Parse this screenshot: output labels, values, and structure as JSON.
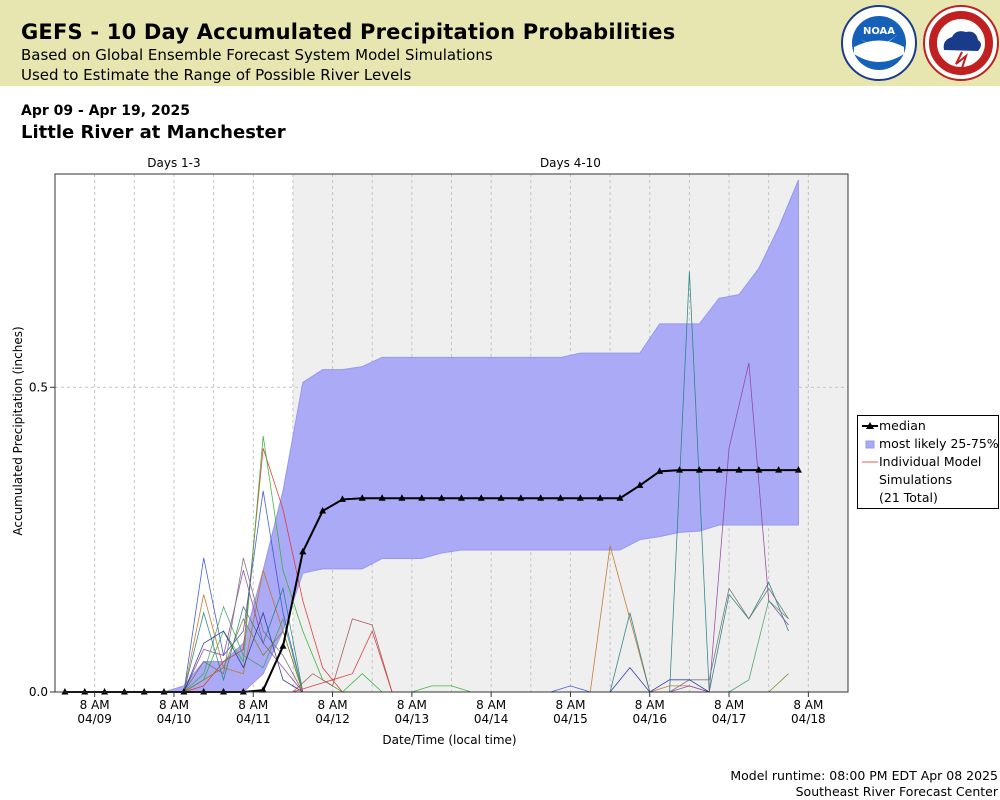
{
  "header": {
    "title": "GEFS - 10 Day Accumulated Precipitation Probabilities",
    "subtitle1": "Based on Global Ensemble Forecast System Model Simulations",
    "subtitle2": "Used to Estimate the Range of Possible River Levels",
    "logos": [
      {
        "name": "noaa-logo",
        "text": "NOAA",
        "ring_text": "NATIONAL OCEANIC AND ATMOSPHERIC ADMINISTRATION"
      },
      {
        "name": "nws-logo",
        "ring_text": "NATIONAL WEATHER SERVICE"
      }
    ]
  },
  "period": "Apr 09 - Apr 19, 2025",
  "station": "Little River at Manchester",
  "footer": {
    "runtime": "Model runtime: 08:00 PM EDT Apr 08 2025",
    "center": "Southeast River Forecast Center"
  },
  "colors": {
    "banner": "#e8e6b0",
    "band_fill": "#aaaaf6",
    "band_edge": "#9898ee",
    "median": "#000000",
    "days4_10_shade": "#efefef",
    "member_colors": [
      "#e03030",
      "#30b030",
      "#3050d0",
      "#c07020",
      "#208080",
      "#9040a0",
      "#707070",
      "#40a060",
      "#2030a0",
      "#808020",
      "#a05050"
    ]
  },
  "chart_data": {
    "type": "line",
    "title": "",
    "xlabel": "Date/Time (local time)",
    "ylabel": "Accumulated Precipitation (inches)",
    "ylim": [
      0,
      0.85
    ],
    "yticks": [
      "0.0",
      "0.5"
    ],
    "ytick_values": [
      0.0,
      0.5
    ],
    "xlim": [
      "2025-04-08 20:00",
      "2025-04-18 20:00"
    ],
    "xticks": [
      {
        "time": "2025-04-09 08:00",
        "label1": "8 AM",
        "label2": "04/09"
      },
      {
        "time": "2025-04-10 08:00",
        "label1": "8 AM",
        "label2": "04/10"
      },
      {
        "time": "2025-04-11 08:00",
        "label1": "8 AM",
        "label2": "04/11"
      },
      {
        "time": "2025-04-12 08:00",
        "label1": "8 AM",
        "label2": "04/12"
      },
      {
        "time": "2025-04-13 08:00",
        "label1": "8 AM",
        "label2": "04/13"
      },
      {
        "time": "2025-04-14 08:00",
        "label1": "8 AM",
        "label2": "04/14"
      },
      {
        "time": "2025-04-15 08:00",
        "label1": "8 AM",
        "label2": "04/15"
      },
      {
        "time": "2025-04-16 08:00",
        "label1": "8 AM",
        "label2": "04/16"
      },
      {
        "time": "2025-04-17 08:00",
        "label1": "8 AM",
        "label2": "04/17"
      },
      {
        "time": "2025-04-18 08:00",
        "label1": "8 AM",
        "label2": "04/18"
      }
    ],
    "grid": true,
    "regions": [
      {
        "label": "Days 1-3",
        "start": "2025-04-08 20:00",
        "end": "2025-04-11 20:00",
        "shaded": false
      },
      {
        "label": "Days 4-10",
        "start": "2025-04-11 20:00",
        "end": "2025-04-18 20:00",
        "shaded": true
      }
    ],
    "legend_position": "right",
    "legend": {
      "median": "median",
      "band": "most likely 25-75%",
      "members": [
        "Individual Model",
        "Simulations",
        "(21 Total)"
      ]
    },
    "x": [
      "2025-04-08 23:00",
      "2025-04-09 02:00",
      "2025-04-09 05:00",
      "2025-04-09 08:00",
      "2025-04-09 11:00",
      "2025-04-09 14:00",
      "2025-04-09 17:00",
      "2025-04-09 20:00",
      "2025-04-09 23:00",
      "2025-04-10 02:00",
      "2025-04-10 05:00",
      "2025-04-10 08:00",
      "2025-04-10 11:00",
      "2025-04-10 14:00",
      "2025-04-10 17:00",
      "2025-04-10 20:00",
      "2025-04-10 23:00",
      "2025-04-11 02:00",
      "2025-04-11 05:00",
      "2025-04-11 08:00",
      "2025-04-11 11:00",
      "2025-04-11 14:00",
      "2025-04-11 17:00",
      "2025-04-11 20:00",
      "2025-04-11 23:00",
      "2025-04-12 02:00",
      "2025-04-12 05:00",
      "2025-04-12 08:00",
      "2025-04-12 11:00",
      "2025-04-12 14:00",
      "2025-04-12 17:00",
      "2025-04-12 20:00",
      "2025-04-12 23:00",
      "2025-04-13 02:00",
      "2025-04-13 05:00",
      "2025-04-13 08:00",
      "2025-04-13 11:00",
      "2025-04-13 14:00",
      "2025-04-13 17:00",
      "2025-04-13 20:00",
      "2025-04-13 23:00",
      "2025-04-14 02:00",
      "2025-04-14 05:00",
      "2025-04-14 08:00",
      "2025-04-14 11:00",
      "2025-04-14 14:00",
      "2025-04-14 17:00",
      "2025-04-14 20:00",
      "2025-04-14 23:00",
      "2025-04-15 02:00",
      "2025-04-15 05:00",
      "2025-04-15 08:00",
      "2025-04-15 11:00",
      "2025-04-15 14:00",
      "2025-04-15 17:00",
      "2025-04-15 20:00",
      "2025-04-16 02:00",
      "2025-04-16 08:00",
      "2025-04-16 14:00",
      "2025-04-16 20:00",
      "2025-04-17 02:00",
      "2025-04-17 08:00",
      "2025-04-17 14:00",
      "2025-04-17 20:00",
      "2025-04-18 02:00"
    ],
    "series": [
      {
        "name": "median",
        "x": [
          "2025-04-08 23:00",
          "2025-04-09 05:00",
          "2025-04-09 11:00",
          "2025-04-09 17:00",
          "2025-04-09 23:00",
          "2025-04-10 05:00",
          "2025-04-10 11:00",
          "2025-04-10 17:00",
          "2025-04-10 23:00",
          "2025-04-11 05:00",
          "2025-04-11 11:00",
          "2025-04-11 17:00",
          "2025-04-11 23:00",
          "2025-04-12 05:00",
          "2025-04-12 11:00",
          "2025-04-12 17:00",
          "2025-04-12 23:00",
          "2025-04-13 05:00",
          "2025-04-13 11:00",
          "2025-04-13 17:00",
          "2025-04-13 23:00",
          "2025-04-14 05:00",
          "2025-04-14 11:00",
          "2025-04-14 17:00",
          "2025-04-14 23:00",
          "2025-04-15 05:00",
          "2025-04-15 11:00",
          "2025-04-15 17:00",
          "2025-04-15 23:00",
          "2025-04-16 05:00",
          "2025-04-16 11:00",
          "2025-04-16 17:00",
          "2025-04-16 23:00",
          "2025-04-17 05:00",
          "2025-04-17 11:00",
          "2025-04-17 17:00",
          "2025-04-17 23:00",
          "2025-04-18 05:00"
        ],
        "values": [
          0,
          0,
          0,
          0,
          0,
          0,
          0,
          0,
          0,
          0,
          0.003,
          0.075,
          0.23,
          0.297,
          0.316,
          0.318,
          0.318,
          0.318,
          0.318,
          0.318,
          0.318,
          0.318,
          0.318,
          0.318,
          0.318,
          0.318,
          0.318,
          0.318,
          0.318,
          0.339,
          0.362,
          0.364,
          0.364,
          0.364,
          0.364,
          0.364,
          0.364,
          0.364
        ]
      },
      {
        "name": "most likely 25-75%",
        "x": [
          "2025-04-10 05:00",
          "2025-04-10 11:00",
          "2025-04-10 17:00",
          "2025-04-10 23:00",
          "2025-04-11 05:00",
          "2025-04-11 11:00",
          "2025-04-11 17:00",
          "2025-04-11 23:00",
          "2025-04-12 05:00",
          "2025-04-12 11:00",
          "2025-04-12 17:00",
          "2025-04-12 23:00",
          "2025-04-13 05:00",
          "2025-04-13 11:00",
          "2025-04-13 17:00",
          "2025-04-13 23:00",
          "2025-04-14 05:00",
          "2025-04-14 11:00",
          "2025-04-14 17:00",
          "2025-04-14 23:00",
          "2025-04-15 05:00",
          "2025-04-15 11:00",
          "2025-04-15 17:00",
          "2025-04-15 23:00",
          "2025-04-16 05:00",
          "2025-04-16 11:00",
          "2025-04-16 17:00",
          "2025-04-16 23:00",
          "2025-04-17 05:00",
          "2025-04-17 11:00",
          "2025-04-17 17:00",
          "2025-04-17 23:00",
          "2025-04-18 05:00"
        ],
        "low": [
          0,
          0,
          0,
          0,
          0,
          0.03,
          0.1,
          0.195,
          0.202,
          0.202,
          0.202,
          0.219,
          0.219,
          0.219,
          0.228,
          0.233,
          0.233,
          0.233,
          0.233,
          0.233,
          0.233,
          0.233,
          0.233,
          0.233,
          0.25,
          0.255,
          0.262,
          0.264,
          0.274,
          0.274,
          0.274,
          0.274,
          0.274
        ],
        "high": [
          0,
          0.01,
          0.05,
          0.05,
          0.08,
          0.2,
          0.33,
          0.508,
          0.529,
          0.529,
          0.534,
          0.549,
          0.549,
          0.549,
          0.549,
          0.549,
          0.549,
          0.549,
          0.549,
          0.549,
          0.549,
          0.556,
          0.556,
          0.556,
          0.556,
          0.604,
          0.604,
          0.604,
          0.646,
          0.652,
          0.695,
          0.762,
          0.84
        ]
      },
      {
        "name": "member-01",
        "x": [
          "2025-04-10 11:00",
          "2025-04-10 17:00",
          "2025-04-10 23:00",
          "2025-04-11 05:00",
          "2025-04-11 11:00",
          "2025-04-11 17:00",
          "2025-04-11 23:00",
          "2025-04-12 05:00",
          "2025-04-12 11:00"
        ],
        "values": [
          0,
          0.01,
          0.05,
          0.07,
          0.4,
          0.3,
          0.15,
          0.04,
          0
        ]
      },
      {
        "name": "member-02",
        "x": [
          "2025-04-10 11:00",
          "2025-04-10 17:00",
          "2025-04-10 23:00",
          "2025-04-11 05:00",
          "2025-04-11 11:00",
          "2025-04-11 17:00",
          "2025-04-11 23:00",
          "2025-04-12 05:00",
          "2025-04-12 11:00",
          "2025-04-12 17:00",
          "2025-04-12 23:00"
        ],
        "values": [
          0,
          0.02,
          0.1,
          0.05,
          0.42,
          0.2,
          0.1,
          0.02,
          0,
          0.03,
          0
        ]
      },
      {
        "name": "member-03",
        "x": [
          "2025-04-10 11:00",
          "2025-04-10 17:00",
          "2025-04-10 23:00",
          "2025-04-11 05:00",
          "2025-04-11 11:00",
          "2025-04-11 17:00",
          "2025-04-11 23:00"
        ],
        "values": [
          0,
          0.22,
          0.06,
          0.1,
          0.33,
          0.13,
          0
        ]
      },
      {
        "name": "member-04",
        "x": [
          "2025-04-10 11:00",
          "2025-04-10 17:00",
          "2025-04-10 23:00",
          "2025-04-11 05:00",
          "2025-04-11 11:00",
          "2025-04-11 17:00",
          "2025-04-11 23:00"
        ],
        "values": [
          0,
          0.16,
          0.04,
          0.03,
          0.2,
          0.1,
          0
        ]
      },
      {
        "name": "member-05",
        "x": [
          "2025-04-10 11:00",
          "2025-04-10 17:00",
          "2025-04-10 23:00",
          "2025-04-11 05:00",
          "2025-04-11 11:00",
          "2025-04-11 17:00",
          "2025-04-11 23:00"
        ],
        "values": [
          0,
          0.13,
          0.02,
          0.14,
          0.08,
          0.17,
          0
        ]
      },
      {
        "name": "member-06",
        "x": [
          "2025-04-10 11:00",
          "2025-04-10 17:00",
          "2025-04-10 23:00",
          "2025-04-11 05:00",
          "2025-04-11 11:00",
          "2025-04-11 17:00",
          "2025-04-11 23:00"
        ],
        "values": [
          0,
          0.07,
          0.06,
          0.2,
          0.08,
          0.04,
          0
        ]
      },
      {
        "name": "member-07",
        "x": [
          "2025-04-10 11:00",
          "2025-04-10 17:00",
          "2025-04-10 23:00",
          "2025-04-11 05:00",
          "2025-04-11 11:00",
          "2025-04-11 17:00",
          "2025-04-11 23:00"
        ],
        "values": [
          0,
          0.05,
          0.03,
          0.22,
          0.1,
          0.06,
          0
        ]
      },
      {
        "name": "member-08",
        "x": [
          "2025-04-10 11:00",
          "2025-04-10 17:00",
          "2025-04-10 23:00",
          "2025-04-11 05:00",
          "2025-04-11 11:00",
          "2025-04-11 17:00",
          "2025-04-11 23:00"
        ],
        "values": [
          0,
          0.03,
          0.14,
          0.06,
          0.04,
          0.12,
          0
        ]
      },
      {
        "name": "member-09",
        "x": [
          "2025-04-10 11:00",
          "2025-04-10 17:00",
          "2025-04-10 23:00",
          "2025-04-11 05:00",
          "2025-04-11 11:00",
          "2025-04-11 17:00",
          "2025-04-11 23:00"
        ],
        "values": [
          0,
          0.08,
          0.1,
          0.04,
          0.13,
          0.02,
          0
        ]
      },
      {
        "name": "member-10",
        "x": [
          "2025-04-10 11:00",
          "2025-04-10 17:00",
          "2025-04-10 23:00",
          "2025-04-11 05:00",
          "2025-04-11 11:00",
          "2025-04-11 17:00",
          "2025-04-11 23:00"
        ],
        "values": [
          0,
          0.02,
          0.04,
          0.12,
          0.06,
          0.1,
          0
        ]
      },
      {
        "name": "member-11",
        "x": [
          "2025-04-11 20:00",
          "2025-04-12 02:00",
          "2025-04-12 08:00",
          "2025-04-12 14:00",
          "2025-04-12 20:00",
          "2025-04-13 02:00",
          "2025-04-13 08:00"
        ],
        "values": [
          0,
          0.03,
          0.01,
          0.12,
          0.11,
          0,
          0
        ]
      },
      {
        "name": "member-12",
        "x": [
          "2025-04-11 20:00",
          "2025-04-12 02:00",
          "2025-04-12 08:00",
          "2025-04-12 14:00",
          "2025-04-12 20:00",
          "2025-04-13 02:00"
        ],
        "values": [
          0,
          0.01,
          0.02,
          0.03,
          0.1,
          0
        ]
      },
      {
        "name": "member-13",
        "x": [
          "2025-04-13 08:00",
          "2025-04-13 14:00",
          "2025-04-13 20:00",
          "2025-04-14 02:00"
        ],
        "values": [
          0,
          0.01,
          0.01,
          0
        ]
      },
      {
        "name": "member-14",
        "x": [
          "2025-04-15 02:00",
          "2025-04-15 08:00",
          "2025-04-15 14:00"
        ],
        "values": [
          0,
          0.01,
          0
        ]
      },
      {
        "name": "member-15",
        "x": [
          "2025-04-15 14:00",
          "2025-04-15 20:00",
          "2025-04-16 02:00",
          "2025-04-16 08:00",
          "2025-04-16 14:00",
          "2025-04-16 20:00",
          "2025-04-17 02:00"
        ],
        "values": [
          0,
          0.24,
          0.12,
          0,
          0.01,
          0.01,
          0
        ]
      },
      {
        "name": "member-16",
        "x": [
          "2025-04-15 14:00",
          "2025-04-15 20:00",
          "2025-04-16 02:00",
          "2025-04-16 08:00",
          "2025-04-16 14:00",
          "2025-04-16 20:00",
          "2025-04-17 02:00",
          "2025-04-17 08:00",
          "2025-04-17 14:00",
          "2025-04-17 20:00",
          "2025-04-18 02:00"
        ],
        "values": [
          0,
          0,
          0.13,
          0,
          0,
          0.69,
          0,
          0.16,
          0.12,
          0.18,
          0.1
        ]
      },
      {
        "name": "member-17",
        "x": [
          "2025-04-16 14:00",
          "2025-04-16 20:00",
          "2025-04-17 02:00",
          "2025-04-17 08:00",
          "2025-04-17 14:00",
          "2025-04-17 20:00",
          "2025-04-18 02:00"
        ],
        "values": [
          0,
          0.01,
          0,
          0.4,
          0.54,
          0.15,
          0.11
        ]
      },
      {
        "name": "member-18",
        "x": [
          "2025-04-16 14:00",
          "2025-04-16 20:00",
          "2025-04-17 02:00",
          "2025-04-17 08:00",
          "2025-04-17 14:00",
          "2025-04-17 20:00",
          "2025-04-18 02:00"
        ],
        "values": [
          0,
          0.02,
          0.02,
          0.17,
          0.12,
          0.17,
          0.12
        ]
      },
      {
        "name": "member-19",
        "x": [
          "2025-04-17 08:00",
          "2025-04-17 14:00",
          "2025-04-17 20:00",
          "2025-04-18 02:00"
        ],
        "values": [
          0,
          0.02,
          0.15,
          0.12
        ]
      },
      {
        "name": "member-20",
        "x": [
          "2025-04-15 20:00",
          "2025-04-16 02:00",
          "2025-04-16 08:00",
          "2025-04-16 14:00",
          "2025-04-16 20:00",
          "2025-04-17 02:00"
        ],
        "values": [
          0,
          0.04,
          0,
          0.02,
          0.02,
          0
        ]
      },
      {
        "name": "member-21",
        "x": [
          "2025-04-17 14:00",
          "2025-04-17 20:00",
          "2025-04-18 02:00"
        ],
        "values": [
          0,
          0,
          0.03
        ]
      }
    ]
  }
}
